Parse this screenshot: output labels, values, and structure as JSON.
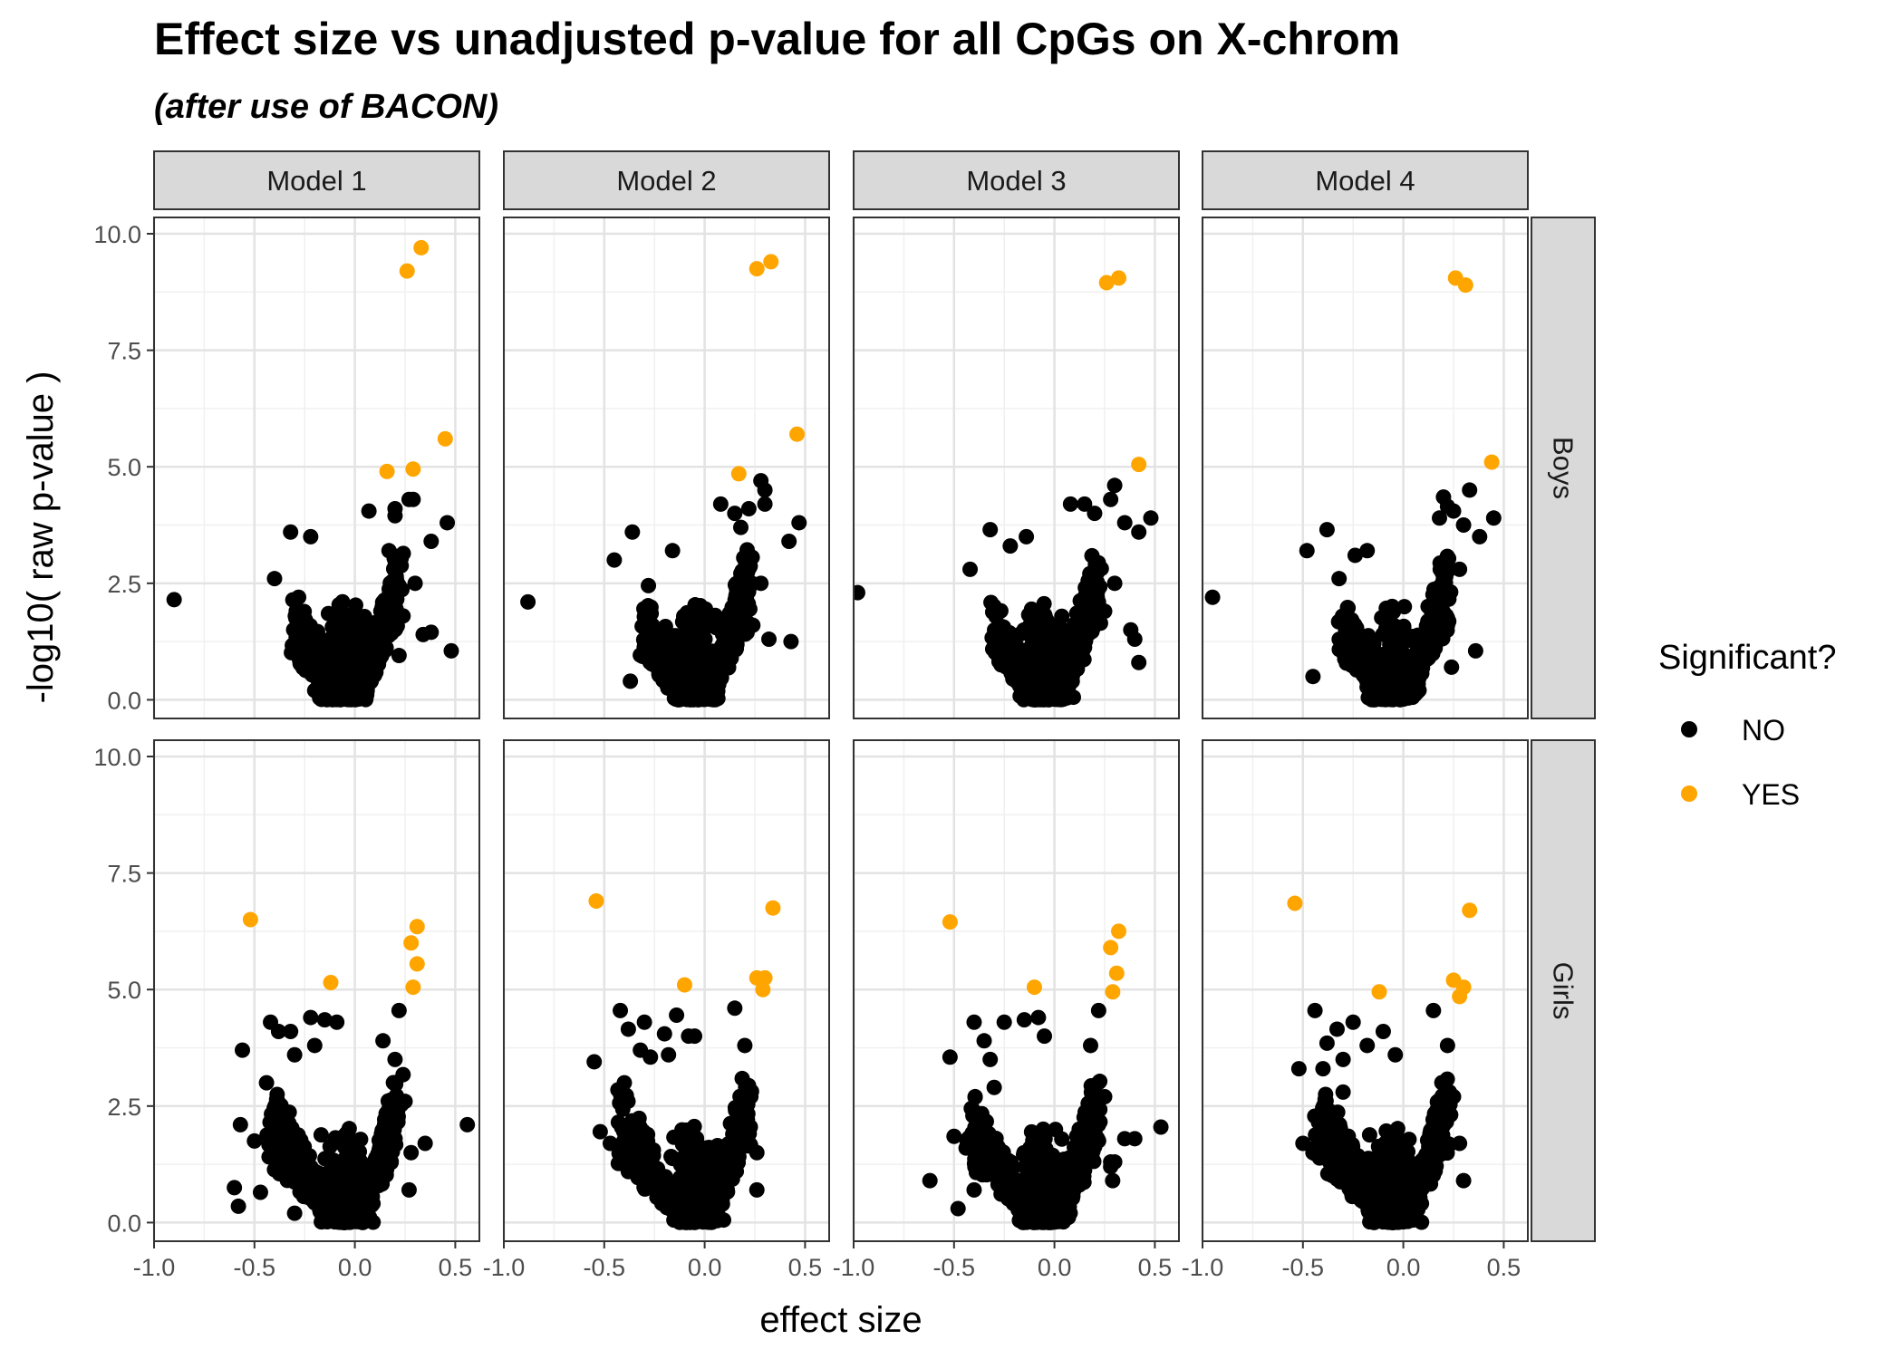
{
  "chart_data": {
    "type": "scatter",
    "title": "Effect size vs unadjusted p-value for all CpGs on X-chrom",
    "subtitle": "(after use of BACON)",
    "xlabel": "effect size",
    "ylabel": "-log10( raw p-value )",
    "xlim": [
      -1.0,
      0.62
    ],
    "ylim": [
      -0.4,
      10.35
    ],
    "x_ticks": [
      "-1.0",
      "-0.5",
      "0.0",
      "0.5"
    ],
    "y_ticks": [
      "0.0",
      "2.5",
      "5.0",
      "7.5",
      "10.0"
    ],
    "grid": true,
    "legend_position": "right",
    "legend": {
      "title": "Significant?",
      "items": [
        {
          "label": "NO",
          "color": "#000000"
        },
        {
          "label": "YES",
          "color": "#FFA500"
        }
      ]
    },
    "columns": [
      "Model 1",
      "Model 2",
      "Model 3",
      "Model 4"
    ],
    "rows": [
      "Boys",
      "Girls"
    ],
    "panels": [
      {
        "model": "Model 1",
        "group": "Boys",
        "significant": [
          [
            0.33,
            9.7
          ],
          [
            0.26,
            9.2
          ],
          [
            0.45,
            5.6
          ],
          [
            0.16,
            4.9
          ],
          [
            0.29,
            4.95
          ]
        ],
        "outliers": [
          [
            -0.9,
            2.15
          ],
          [
            -0.32,
            3.6
          ],
          [
            -0.4,
            2.6
          ],
          [
            -0.28,
            2.2
          ],
          [
            -0.22,
            3.5
          ],
          [
            -0.2,
            0.2
          ],
          [
            0.07,
            4.05
          ],
          [
            0.17,
            3.2
          ],
          [
            0.2,
            3.95
          ],
          [
            0.2,
            4.1
          ],
          [
            0.24,
            1.8
          ],
          [
            0.29,
            4.3
          ],
          [
            0.27,
            4.3
          ],
          [
            0.3,
            2.5
          ],
          [
            0.34,
            1.4
          ],
          [
            0.38,
            1.45
          ],
          [
            0.38,
            3.4
          ],
          [
            0.46,
            3.8
          ],
          [
            0.48,
            1.05
          ],
          [
            0.22,
            0.95
          ],
          [
            -0.18,
            0.25
          ]
        ]
      },
      {
        "model": "Model 2",
        "group": "Boys",
        "significant": [
          [
            0.33,
            9.4
          ],
          [
            0.26,
            9.25
          ],
          [
            0.46,
            5.7
          ],
          [
            0.17,
            4.85
          ]
        ],
        "outliers": [
          [
            -0.88,
            2.1
          ],
          [
            -0.45,
            3.0
          ],
          [
            -0.36,
            3.6
          ],
          [
            -0.37,
            0.4
          ],
          [
            -0.28,
            2.45
          ],
          [
            -0.16,
            3.2
          ],
          [
            0.08,
            4.2
          ],
          [
            0.15,
            4.0
          ],
          [
            0.22,
            4.1
          ],
          [
            0.28,
            4.7
          ],
          [
            0.3,
            4.2
          ],
          [
            0.3,
            4.5
          ],
          [
            0.42,
            3.4
          ],
          [
            0.47,
            3.8
          ],
          [
            0.43,
            1.25
          ],
          [
            0.24,
            1.6
          ],
          [
            0.28,
            2.5
          ],
          [
            0.32,
            1.3
          ],
          [
            0.18,
            3.7
          ]
        ]
      },
      {
        "model": "Model 3",
        "group": "Boys",
        "significant": [
          [
            0.32,
            9.05
          ],
          [
            0.26,
            8.95
          ],
          [
            0.42,
            5.05
          ]
        ],
        "outliers": [
          [
            -0.98,
            2.3
          ],
          [
            -0.42,
            2.8
          ],
          [
            -0.32,
            3.65
          ],
          [
            -0.22,
            3.3
          ],
          [
            -0.14,
            3.5
          ],
          [
            0.08,
            4.2
          ],
          [
            0.15,
            4.2
          ],
          [
            0.2,
            4.0
          ],
          [
            0.28,
            4.3
          ],
          [
            0.3,
            4.6
          ],
          [
            0.35,
            3.8
          ],
          [
            0.42,
            3.6
          ],
          [
            0.48,
            3.9
          ],
          [
            0.4,
            1.3
          ],
          [
            0.42,
            0.8
          ],
          [
            0.38,
            1.5
          ],
          [
            0.25,
            1.9
          ],
          [
            0.3,
            2.5
          ],
          [
            -0.16,
            0.3
          ]
        ]
      },
      {
        "model": "Model 4",
        "group": "Boys",
        "significant": [
          [
            0.26,
            9.05
          ],
          [
            0.31,
            8.9
          ],
          [
            0.44,
            5.1
          ]
        ],
        "outliers": [
          [
            -0.95,
            2.2
          ],
          [
            -0.48,
            3.2
          ],
          [
            -0.45,
            0.5
          ],
          [
            -0.38,
            3.65
          ],
          [
            -0.32,
            2.6
          ],
          [
            -0.24,
            3.1
          ],
          [
            -0.18,
            3.2
          ],
          [
            0.2,
            4.35
          ],
          [
            0.22,
            4.15
          ],
          [
            0.25,
            4.05
          ],
          [
            0.3,
            3.75
          ],
          [
            0.33,
            4.5
          ],
          [
            0.38,
            3.5
          ],
          [
            0.45,
            3.9
          ],
          [
            0.36,
            1.05
          ],
          [
            0.28,
            2.8
          ],
          [
            0.24,
            0.7
          ],
          [
            0.18,
            3.9
          ]
        ]
      },
      {
        "model": "Model 1",
        "group": "Girls",
        "significant": [
          [
            -0.52,
            6.5
          ],
          [
            -0.12,
            5.15
          ],
          [
            0.31,
            6.35
          ],
          [
            0.28,
            6.0
          ],
          [
            0.31,
            5.55
          ],
          [
            0.29,
            5.05
          ]
        ],
        "outliers": [
          [
            -0.58,
            0.35
          ],
          [
            -0.6,
            0.75
          ],
          [
            -0.57,
            2.1
          ],
          [
            -0.56,
            3.7
          ],
          [
            -0.5,
            1.75
          ],
          [
            -0.47,
            0.65
          ],
          [
            -0.44,
            3.0
          ],
          [
            -0.42,
            4.3
          ],
          [
            -0.38,
            4.1
          ],
          [
            -0.32,
            4.1
          ],
          [
            -0.3,
            3.6
          ],
          [
            -0.22,
            4.4
          ],
          [
            -0.2,
            3.8
          ],
          [
            -0.15,
            4.35
          ],
          [
            -0.09,
            4.3
          ],
          [
            -0.3,
            0.2
          ],
          [
            0.22,
            4.55
          ],
          [
            0.14,
            3.9
          ],
          [
            0.2,
            3.5
          ],
          [
            0.25,
            2.6
          ],
          [
            0.28,
            1.5
          ],
          [
            0.27,
            0.7
          ],
          [
            0.35,
            1.7
          ],
          [
            0.56,
            2.1
          ],
          [
            -0.12,
            0.2
          ]
        ]
      },
      {
        "model": "Model 2",
        "group": "Girls",
        "significant": [
          [
            -0.54,
            6.9
          ],
          [
            0.34,
            6.75
          ],
          [
            -0.1,
            5.1
          ],
          [
            0.26,
            5.25
          ],
          [
            0.3,
            5.25
          ],
          [
            0.29,
            5.0
          ]
        ],
        "outliers": [
          [
            -0.55,
            3.45
          ],
          [
            -0.52,
            1.95
          ],
          [
            -0.47,
            1.7
          ],
          [
            -0.42,
            4.55
          ],
          [
            -0.4,
            3.0
          ],
          [
            -0.38,
            4.15
          ],
          [
            -0.32,
            3.7
          ],
          [
            -0.3,
            4.3
          ],
          [
            -0.27,
            3.55
          ],
          [
            -0.2,
            4.05
          ],
          [
            -0.18,
            3.6
          ],
          [
            -0.14,
            4.45
          ],
          [
            -0.05,
            4.0
          ],
          [
            -0.08,
            4.0
          ],
          [
            0.15,
            4.6
          ],
          [
            0.2,
            3.8
          ],
          [
            0.23,
            2.7
          ],
          [
            0.26,
            1.5
          ],
          [
            0.26,
            0.7
          ],
          [
            -0.3,
            1.0
          ]
        ]
      },
      {
        "model": "Model 3",
        "group": "Girls",
        "significant": [
          [
            -0.52,
            6.45
          ],
          [
            0.32,
            6.25
          ],
          [
            0.28,
            5.9
          ],
          [
            0.31,
            5.35
          ],
          [
            0.29,
            4.95
          ],
          [
            -0.1,
            5.05
          ]
        ],
        "outliers": [
          [
            -0.62,
            0.9
          ],
          [
            -0.52,
            3.55
          ],
          [
            -0.5,
            1.85
          ],
          [
            -0.48,
            0.3
          ],
          [
            -0.44,
            1.6
          ],
          [
            -0.4,
            0.7
          ],
          [
            -0.4,
            4.3
          ],
          [
            -0.35,
            3.9
          ],
          [
            -0.32,
            3.5
          ],
          [
            -0.25,
            4.3
          ],
          [
            -0.15,
            4.35
          ],
          [
            -0.08,
            4.4
          ],
          [
            -0.05,
            4.0
          ],
          [
            0.22,
            4.55
          ],
          [
            0.18,
            3.8
          ],
          [
            0.25,
            2.7
          ],
          [
            0.28,
            1.3
          ],
          [
            0.3,
            1.3
          ],
          [
            0.35,
            1.8
          ],
          [
            0.4,
            1.8
          ],
          [
            0.53,
            2.05
          ],
          [
            -0.3,
            2.9
          ],
          [
            0.28,
            1.2
          ],
          [
            0.29,
            0.9
          ]
        ]
      },
      {
        "model": "Model 4",
        "group": "Girls",
        "significant": [
          [
            -0.54,
            6.85
          ],
          [
            0.33,
            6.7
          ],
          [
            -0.12,
            4.95
          ],
          [
            0.25,
            5.2
          ],
          [
            0.3,
            5.05
          ],
          [
            0.28,
            4.85
          ]
        ],
        "outliers": [
          [
            -0.52,
            3.3
          ],
          [
            -0.5,
            1.7
          ],
          [
            -0.44,
            4.55
          ],
          [
            -0.45,
            1.5
          ],
          [
            -0.4,
            3.3
          ],
          [
            -0.38,
            3.85
          ],
          [
            -0.33,
            4.15
          ],
          [
            -0.3,
            3.5
          ],
          [
            -0.25,
            4.3
          ],
          [
            -0.18,
            3.8
          ],
          [
            -0.1,
            4.1
          ],
          [
            -0.04,
            3.6
          ],
          [
            0.15,
            4.55
          ],
          [
            0.22,
            3.8
          ],
          [
            0.25,
            2.7
          ],
          [
            0.28,
            1.7
          ],
          [
            0.3,
            0.9
          ],
          [
            -0.3,
            2.8
          ],
          [
            -0.2,
            0.7
          ]
        ]
      }
    ]
  }
}
